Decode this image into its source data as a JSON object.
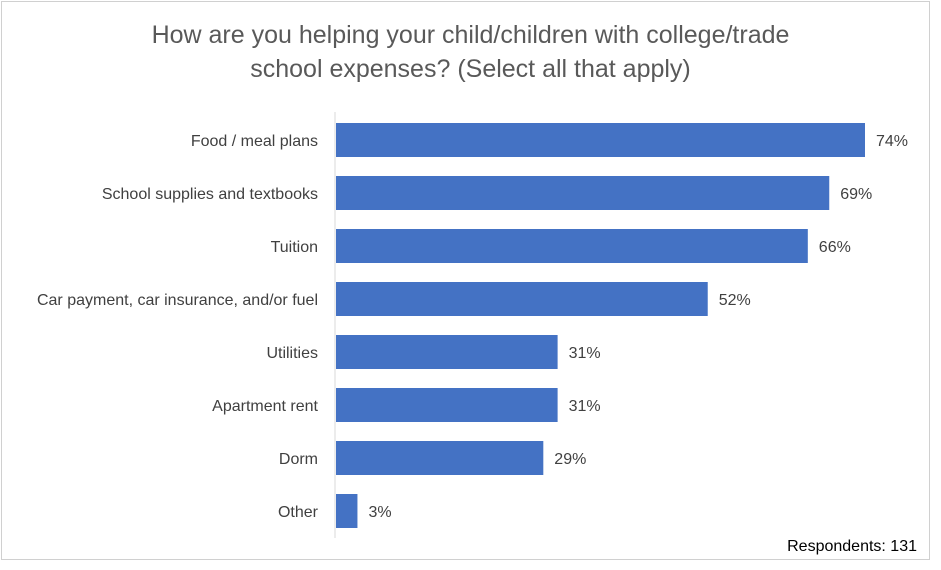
{
  "chart_data": {
    "type": "bar",
    "orientation": "horizontal",
    "title_lines": [
      "How are you helping your child/children with college/trade",
      "school expenses? (Select all that apply)"
    ],
    "categories": [
      "Food / meal plans",
      "School supplies and textbooks",
      "Tuition",
      "Car payment, car insurance, and/or fuel",
      "Utilities",
      "Apartment rent",
      "Dorm",
      "Other"
    ],
    "values": [
      74,
      69,
      66,
      52,
      31,
      31,
      29,
      3
    ],
    "value_labels": [
      "74%",
      "69%",
      "66%",
      "52%",
      "31%",
      "31%",
      "29%",
      "3%"
    ],
    "unit": "%",
    "xlim": [
      0,
      80
    ],
    "grid": false,
    "legend": "none",
    "bar_color": "#4472c4",
    "footnote": "Respondents: 131"
  }
}
